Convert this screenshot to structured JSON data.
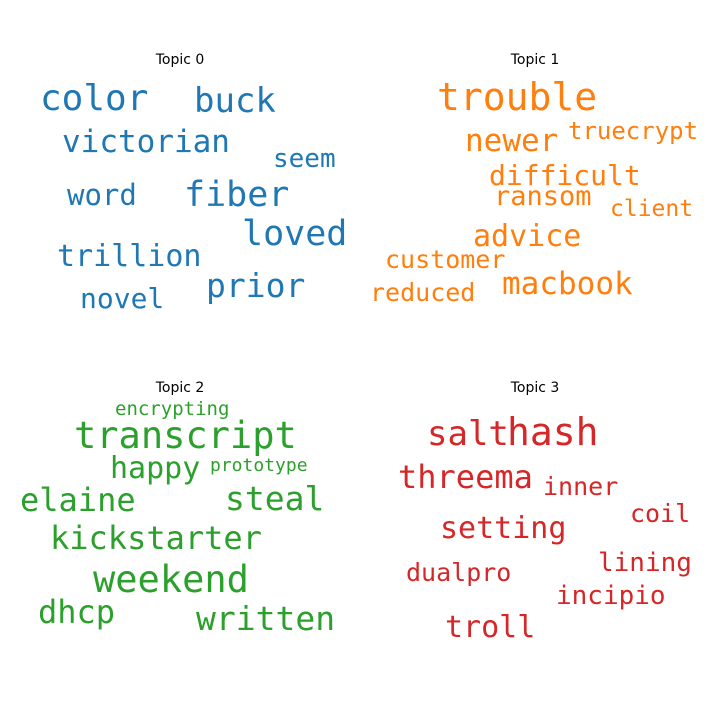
{
  "chart_data": {
    "type": "wordcloud",
    "topics": [
      {
        "title": "Topic 0",
        "color": "#1f77b4",
        "words": [
          "color",
          "buck",
          "victorian",
          "seem",
          "word",
          "fiber",
          "loved",
          "trillion",
          "prior",
          "novel"
        ]
      },
      {
        "title": "Topic 1",
        "color": "#ff7f0e",
        "words": [
          "trouble",
          "newer",
          "truecrypt",
          "difficult",
          "ransom",
          "client",
          "advice",
          "customer",
          "macbook",
          "reduced"
        ]
      },
      {
        "title": "Topic 2",
        "color": "#2ca02c",
        "words": [
          "encrypting",
          "transcript",
          "happy",
          "prototype",
          "elaine",
          "steal",
          "kickstarter",
          "weekend",
          "dhcp",
          "written"
        ]
      },
      {
        "title": "Topic 3",
        "color": "#d62728",
        "words": [
          "salt",
          "hash",
          "threema",
          "inner",
          "coil",
          "setting",
          "lining",
          "dualpro",
          "incipio",
          "troll"
        ]
      }
    ]
  }
}
